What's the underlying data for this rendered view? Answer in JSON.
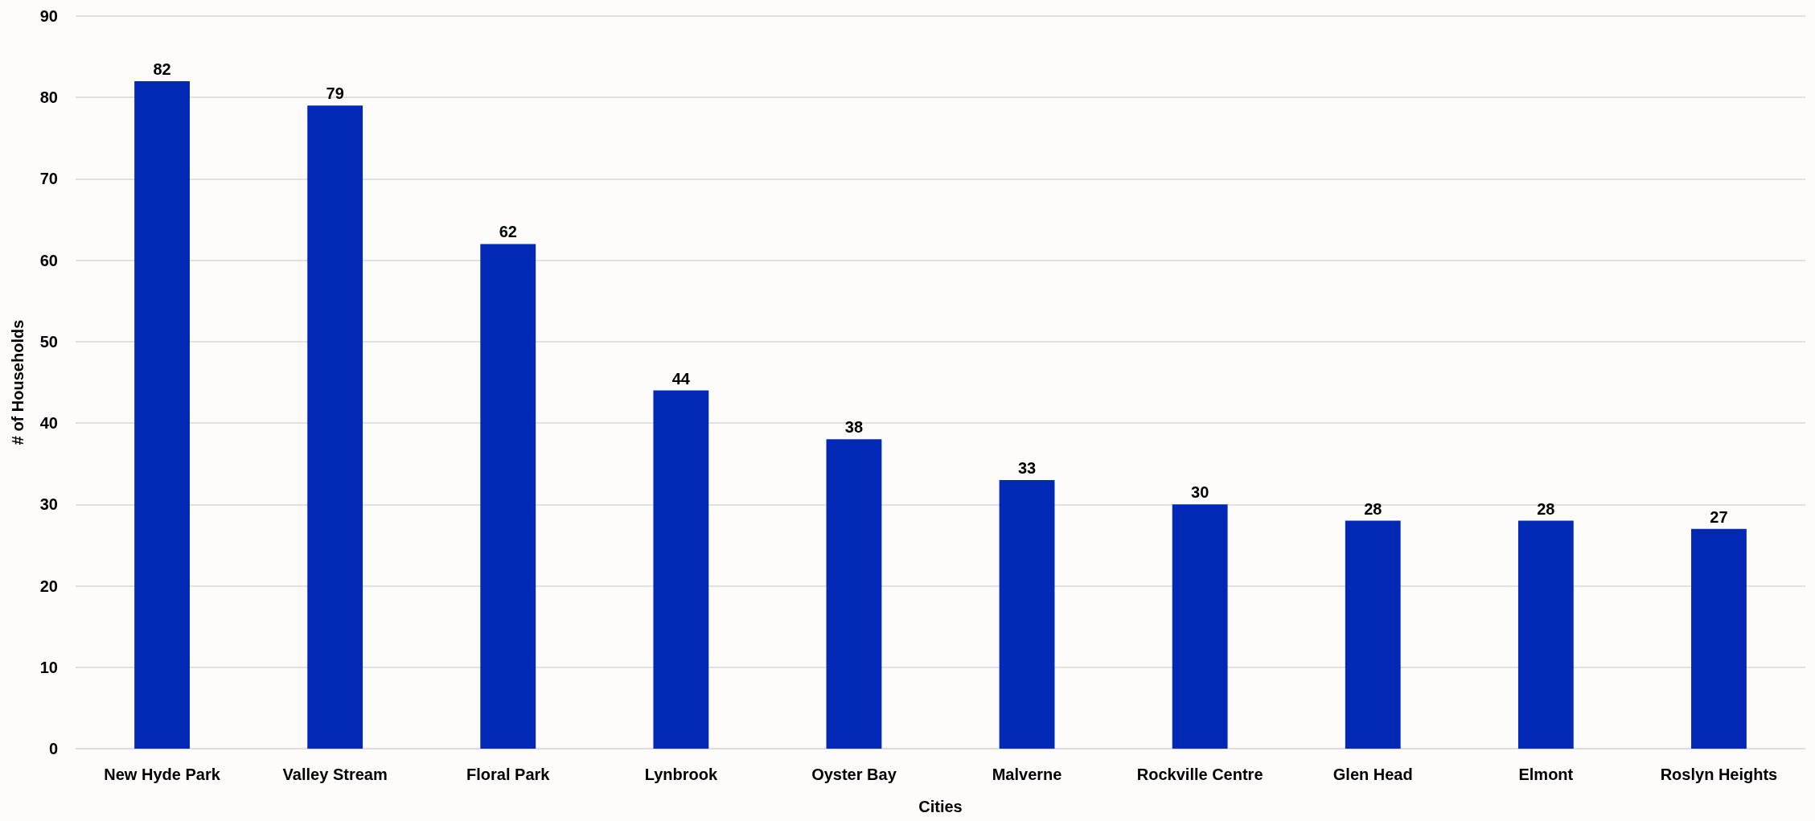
{
  "chart_data": {
    "type": "bar",
    "xlabel": "Cities",
    "ylabel": "# of Households",
    "categories": [
      "New Hyde Park",
      "Valley Stream",
      "Floral Park",
      "Lynbrook",
      "Oyster Bay",
      "Malverne",
      "Rockville Centre",
      "Glen Head",
      "Elmont",
      "Roslyn Heights"
    ],
    "values": [
      82,
      79,
      62,
      44,
      38,
      33,
      30,
      28,
      28,
      27
    ],
    "color": "#0229b5",
    "ylim": [
      0,
      90
    ],
    "yticks": [
      0,
      10,
      20,
      30,
      40,
      50,
      60,
      70,
      80,
      90
    ],
    "grid": "y",
    "data_labels": true
  }
}
